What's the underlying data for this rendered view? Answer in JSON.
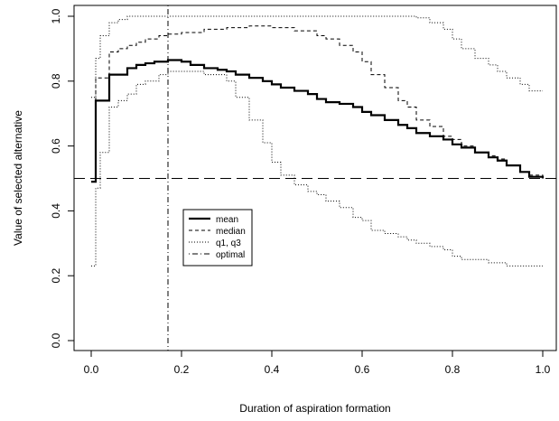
{
  "chart_data": {
    "type": "line",
    "title": "",
    "xlabel": "Duration of aspiration formation",
    "ylabel": "Value of selected alternative",
    "xlim": [
      0,
      1
    ],
    "ylim": [
      0,
      1
    ],
    "x_ticks": [
      "0.0",
      "0.2",
      "0.4",
      "0.6",
      "0.8",
      "1.0"
    ],
    "y_ticks": [
      "0.0",
      "0.2",
      "0.4",
      "0.6",
      "0.8",
      "1.0"
    ],
    "grid": false,
    "legend_position": "center-left",
    "reference_lines": {
      "horizontal_y": 0.5,
      "vertical_x": 0.17
    },
    "series": [
      {
        "name": "mean",
        "style": "solid-thick",
        "x": [
          0,
          0.01,
          0.02,
          0.04,
          0.06,
          0.08,
          0.1,
          0.12,
          0.14,
          0.16,
          0.17,
          0.2,
          0.22,
          0.25,
          0.28,
          0.3,
          0.32,
          0.35,
          0.38,
          0.4,
          0.42,
          0.45,
          0.48,
          0.5,
          0.52,
          0.55,
          0.58,
          0.6,
          0.62,
          0.65,
          0.68,
          0.7,
          0.72,
          0.75,
          0.78,
          0.8,
          0.82,
          0.85,
          0.88,
          0.9,
          0.92,
          0.95,
          0.97,
          1.0
        ],
        "y": [
          0.49,
          0.74,
          0.74,
          0.82,
          0.82,
          0.84,
          0.85,
          0.855,
          0.86,
          0.86,
          0.865,
          0.86,
          0.85,
          0.84,
          0.835,
          0.83,
          0.82,
          0.81,
          0.8,
          0.79,
          0.78,
          0.77,
          0.76,
          0.745,
          0.735,
          0.73,
          0.72,
          0.705,
          0.695,
          0.68,
          0.665,
          0.655,
          0.64,
          0.63,
          0.62,
          0.605,
          0.595,
          0.58,
          0.565,
          0.555,
          0.54,
          0.52,
          0.505,
          0.5
        ]
      },
      {
        "name": "median",
        "style": "dashed",
        "x": [
          0,
          0.01,
          0.02,
          0.04,
          0.06,
          0.08,
          0.1,
          0.12,
          0.15,
          0.17,
          0.2,
          0.25,
          0.3,
          0.35,
          0.4,
          0.45,
          0.5,
          0.52,
          0.55,
          0.58,
          0.6,
          0.62,
          0.65,
          0.68,
          0.7,
          0.72,
          0.75,
          0.78,
          0.8,
          0.82,
          0.85,
          0.88,
          0.9,
          0.92,
          0.95,
          0.97,
          1.0
        ],
        "y": [
          0.5,
          0.81,
          0.81,
          0.89,
          0.9,
          0.91,
          0.92,
          0.93,
          0.94,
          0.945,
          0.95,
          0.96,
          0.965,
          0.97,
          0.965,
          0.955,
          0.94,
          0.93,
          0.91,
          0.89,
          0.86,
          0.82,
          0.78,
          0.74,
          0.72,
          0.68,
          0.66,
          0.63,
          0.62,
          0.6,
          0.58,
          0.57,
          0.56,
          0.54,
          0.52,
          0.51,
          0.5
        ]
      },
      {
        "name": "q1, q3",
        "style": "dotted",
        "x": [
          0,
          0.01,
          0.02,
          0.04,
          0.06,
          0.08,
          0.1,
          0.12,
          0.14,
          0.17,
          0.2,
          0.4,
          0.6,
          0.7,
          0.72,
          0.75,
          0.78,
          0.8,
          0.82,
          0.85,
          0.88,
          0.9,
          0.92,
          0.95,
          0.97,
          1.0
        ],
        "y": [
          0.75,
          0.87,
          0.94,
          0.98,
          0.99,
          1.0,
          1.0,
          1.0,
          1.0,
          1.0,
          1.0,
          1.0,
          1.0,
          1.0,
          0.995,
          0.98,
          0.96,
          0.93,
          0.9,
          0.87,
          0.85,
          0.83,
          0.81,
          0.79,
          0.77,
          0.77
        ]
      },
      {
        "name": "q1, q3",
        "legend": false,
        "style": "dotted",
        "x": [
          0,
          0.01,
          0.02,
          0.04,
          0.06,
          0.08,
          0.1,
          0.12,
          0.15,
          0.17,
          0.2,
          0.25,
          0.3,
          0.32,
          0.35,
          0.38,
          0.4,
          0.42,
          0.45,
          0.48,
          0.5,
          0.52,
          0.55,
          0.58,
          0.6,
          0.62,
          0.65,
          0.68,
          0.7,
          0.72,
          0.75,
          0.78,
          0.8,
          0.82,
          0.85,
          0.88,
          0.9,
          0.92,
          0.95,
          0.97,
          1.0
        ],
        "y": [
          0.23,
          0.47,
          0.58,
          0.72,
          0.74,
          0.76,
          0.79,
          0.8,
          0.82,
          0.83,
          0.83,
          0.82,
          0.8,
          0.75,
          0.68,
          0.61,
          0.55,
          0.51,
          0.48,
          0.46,
          0.45,
          0.43,
          0.41,
          0.38,
          0.37,
          0.34,
          0.33,
          0.32,
          0.31,
          0.3,
          0.29,
          0.28,
          0.26,
          0.25,
          0.25,
          0.24,
          0.24,
          0.23,
          0.23,
          0.23,
          0.23
        ]
      },
      {
        "name": "optimal",
        "style": "dot-dash",
        "legend_only": true,
        "x": [],
        "y": []
      }
    ]
  }
}
